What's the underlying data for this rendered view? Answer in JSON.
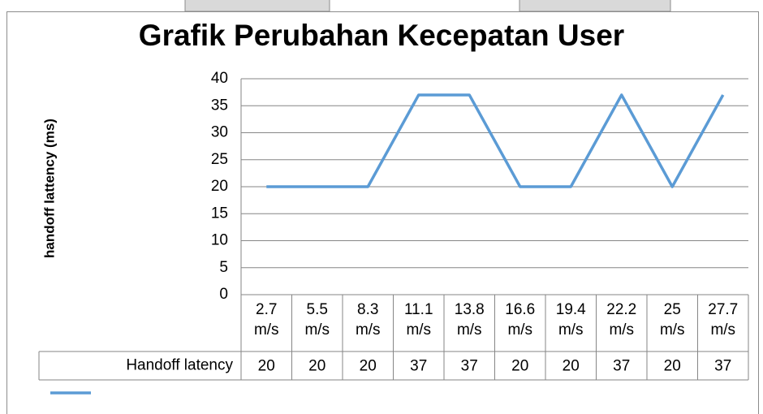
{
  "chart_data": {
    "type": "line",
    "title": "Grafik Perubahan Kecepatan User",
    "ylabel": "handoff lattency (ms)",
    "categories": [
      "2.7 m/s",
      "5.5 m/s",
      "8.3 m/s",
      "11.1 m/s",
      "13.8 m/s",
      "16.6 m/s",
      "19.4 m/s",
      "22.2 m/s",
      "25 m/s",
      "27.7 m/s"
    ],
    "series": [
      {
        "name": "Handoff latency",
        "color": "#5b9bd5",
        "values": [
          20,
          20,
          20,
          37,
          37,
          20,
          20,
          37,
          20,
          37
        ]
      }
    ],
    "ylim": [
      0,
      40
    ],
    "yticks": [
      0,
      5,
      10,
      15,
      20,
      25,
      30,
      35,
      40
    ],
    "grid": true
  }
}
